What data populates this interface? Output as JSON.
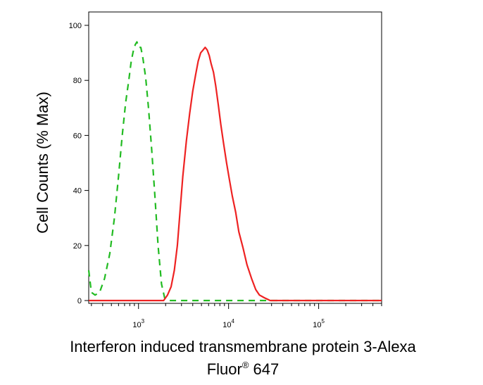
{
  "chart_data": {
    "type": "line",
    "xlabel": "Interferon induced transmembrane protein 3-Alexa",
    "xlabel_line2": "Fluor",
    "xlabel_sup": "®",
    "xlabel_tail": " 647",
    "ylabel": "Cell Counts (% Max)",
    "x_scale": "log",
    "xlim": [
      280,
      500000
    ],
    "ylim": [
      0,
      100
    ],
    "y_ticks": [
      0,
      20,
      40,
      60,
      80,
      100
    ],
    "y_tick_labels": [
      "0",
      "20",
      "40",
      "60",
      "80",
      "100"
    ],
    "x_major_ticks": [
      1000,
      10000,
      100000
    ],
    "x_tick_base": "10",
    "x_tick_exps": [
      "3",
      "4",
      "5"
    ],
    "grid": false,
    "legend": "none",
    "series": [
      {
        "style": "dashed",
        "color": "#22bb22",
        "x": [
          280,
          300,
          330,
          370,
          420,
          480,
          540,
          600,
          660,
          720,
          780,
          830,
          880,
          920,
          960,
          1000,
          1060,
          1120,
          1200,
          1290,
          1400,
          1520,
          1650,
          1800,
          1950,
          2200,
          3000,
          10000,
          100000,
          500000
        ],
        "y": [
          11,
          3,
          2,
          3,
          8,
          17,
          30,
          45,
          60,
          72,
          80,
          87,
          91,
          93,
          94,
          92,
          92,
          88,
          81,
          70,
          55,
          38,
          20,
          6,
          1,
          0,
          0,
          0,
          0,
          0
        ]
      },
      {
        "style": "solid",
        "color": "#ee2222",
        "x": [
          280,
          1000,
          1900,
          2100,
          2300,
          2500,
          2700,
          2900,
          3100,
          3400,
          3700,
          4000,
          4300,
          4600,
          4900,
          5200,
          5500,
          5800,
          6100,
          6400,
          6800,
          7200,
          7700,
          8200,
          8800,
          9500,
          10200,
          11000,
          12000,
          13000,
          14500,
          16000,
          18000,
          20000,
          22000,
          25000,
          29000,
          33000,
          40000,
          100000,
          500000
        ],
        "y": [
          0,
          0,
          0,
          2,
          5,
          11,
          20,
          33,
          45,
          58,
          68,
          76,
          82,
          87,
          90,
          91,
          92,
          91,
          89,
          86,
          83,
          78,
          71,
          64,
          57,
          50,
          44,
          38,
          32,
          25,
          19,
          13,
          8,
          4,
          2,
          1,
          0,
          0,
          0,
          0,
          0
        ]
      }
    ]
  }
}
